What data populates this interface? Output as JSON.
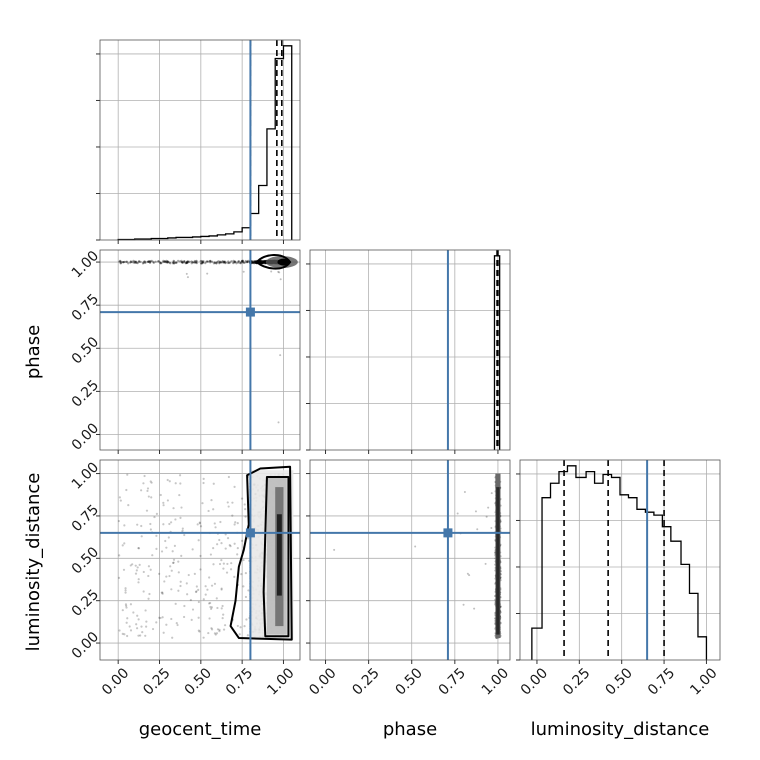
{
  "chart_data": {
    "type": "corner",
    "parameters": [
      "geocent_time",
      "phase",
      "luminosity_distance"
    ],
    "tick_labels": [
      "0.00",
      "0.25",
      "0.50",
      "0.75",
      "1.00"
    ],
    "truth_color": "#4477aa",
    "truths": {
      "geocent_time": 0.8,
      "phase": 0.71,
      "luminosity_distance": 0.65
    },
    "marginals": {
      "geocent_time": {
        "bin_edges": [
          0.0,
          0.05,
          0.1,
          0.15,
          0.2,
          0.25,
          0.3,
          0.35,
          0.4,
          0.45,
          0.5,
          0.55,
          0.6,
          0.65,
          0.7,
          0.75,
          0.8,
          0.85,
          0.9,
          0.95,
          1.0,
          1.05
        ],
        "counts": [
          1,
          1,
          2,
          2,
          3,
          3,
          4,
          5,
          5,
          6,
          7,
          8,
          10,
          12,
          16,
          24,
          52,
          107,
          218,
          356,
          381
        ],
        "quantiles": [
          0.8,
          0.96,
          0.99
        ]
      },
      "phase": {
        "bin_edges": [
          0.98,
          0.995,
          1.01
        ],
        "counts": [
          1,
          1
        ],
        "quantiles": [
          0.995,
          0.998,
          1.0
        ]
      },
      "luminosity_distance": {
        "bin_edges": [
          -0.03,
          0.03,
          0.08,
          0.13,
          0.18,
          0.23,
          0.29,
          0.34,
          0.39,
          0.44,
          0.49,
          0.54,
          0.59,
          0.64,
          0.69,
          0.74,
          0.79,
          0.85,
          0.9,
          0.95,
          1.0
        ],
        "counts": [
          0.11,
          0.56,
          0.61,
          0.65,
          0.67,
          0.63,
          0.65,
          0.61,
          0.64,
          0.63,
          0.57,
          0.56,
          0.52,
          0.51,
          0.5,
          0.46,
          0.41,
          0.33,
          0.23,
          0.08
        ],
        "quantiles": [
          0.16,
          0.42,
          0.75
        ]
      }
    },
    "joint": [
      {
        "x": "geocent_time",
        "y": "phase",
        "description": "samples concentrated near geocent_time 0.95–1.00, phase ≈ 1.00, with thin tail at phase 1.00 toward geocent_time 0"
      },
      {
        "x": "geocent_time",
        "y": "luminosity_distance",
        "description": "dense column near geocent_time 0.90–1.00 spanning luminosity_distance 0.05–1.00, sparse scatter elsewhere"
      },
      {
        "x": "phase",
        "y": "luminosity_distance",
        "description": "narrow column at phase ≈ 1.00 spanning luminosity_distance 0.05–1.00"
      }
    ]
  }
}
